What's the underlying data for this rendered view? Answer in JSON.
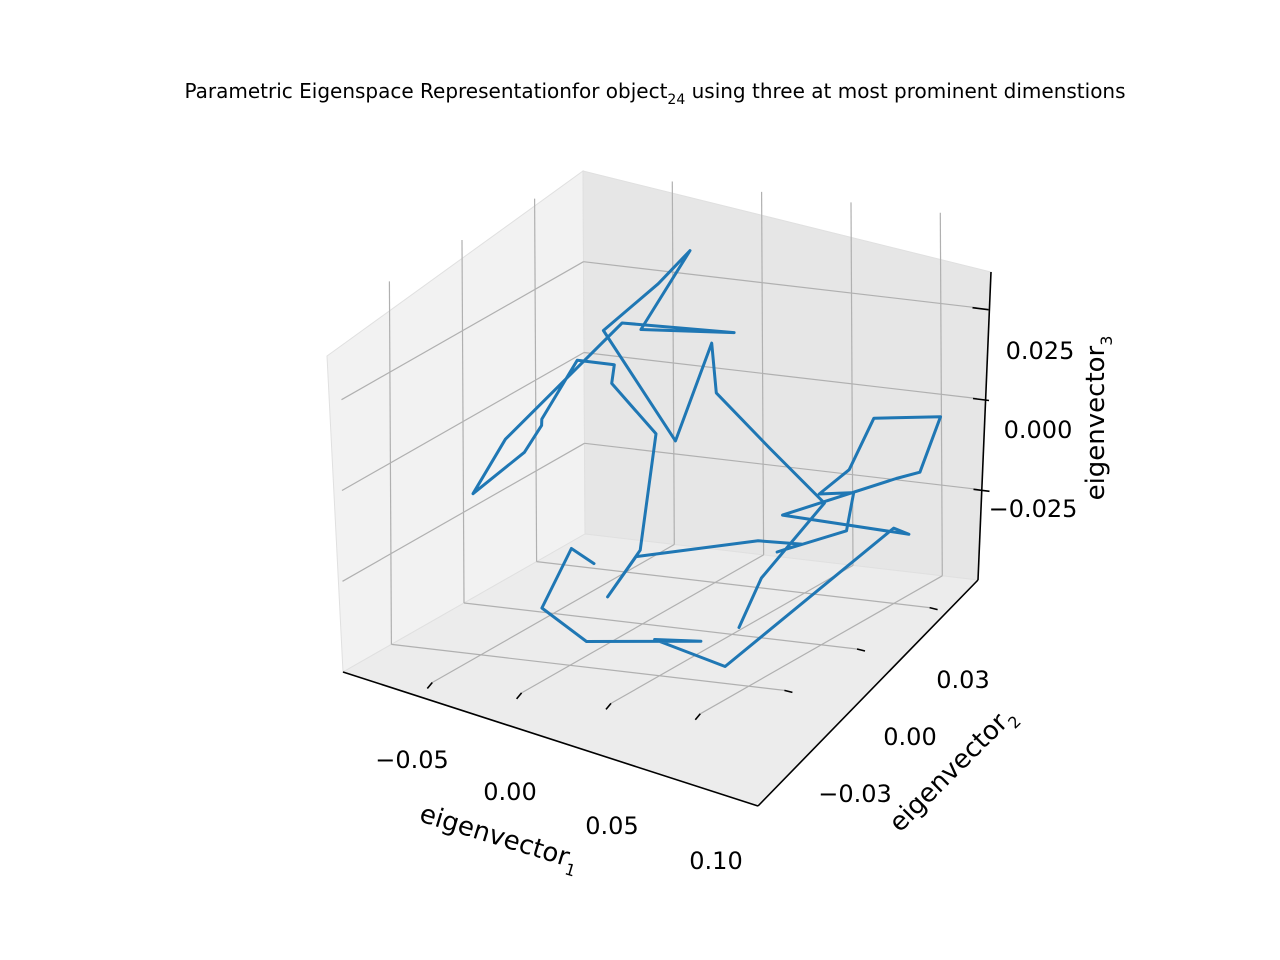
{
  "chart_data": {
    "type": "line3d",
    "title_main": "Parametric Eigenspace Representationfor object",
    "title_sub": "24",
    "title_tail": " using three at most prominent dimenstions",
    "xlabel_main": "eigenvector",
    "xlabel_sub": "1",
    "ylabel_main": "eigenvector",
    "ylabel_sub": "2",
    "zlabel_main": "eigenvector",
    "zlabel_sub": "3",
    "xlim": [
      -0.1,
      0.12
    ],
    "ylim": [
      -0.05,
      0.05
    ],
    "zlim": [
      -0.05,
      0.05
    ],
    "x_ticks": [
      -0.05,
      0.0,
      0.05,
      0.1
    ],
    "x_tick_labels": [
      "−0.05",
      "0.00",
      "0.05",
      "0.10"
    ],
    "y_ticks": [
      -0.03,
      0.0,
      0.03
    ],
    "y_tick_labels": [
      "−0.03",
      "0.00",
      "0.03"
    ],
    "z_ticks": [
      -0.025,
      0.0,
      0.025
    ],
    "z_tick_labels": [
      "−0.025",
      "0.000",
      "0.025"
    ],
    "grid": true,
    "series": [
      {
        "color": "#1f77b4",
        "x": [
          -0.042,
          -0.056,
          -0.036,
          0.012,
          0.053,
          0.042,
          0.076,
          0.092,
          0.11,
          0.095,
          0.118,
          0.115,
          0.109,
          0.103,
          0.089,
          0.083,
          0.086,
          0.09,
          0.081,
          0.077,
          0.069,
          0.04,
          0.024,
          0.007,
          -0.03,
          -0.056,
          -0.064,
          -0.082,
          -0.098,
          -0.09,
          -0.082,
          -0.081,
          -0.06,
          -0.05,
          -0.005,
          -0.03,
          -0.024,
          0.003,
          -0.017,
          -0.03,
          0.011,
          0.027,
          0.058,
          0.075,
          0.083,
          0.107
        ],
        "y": [
          0.011,
          0.012,
          -0.015,
          -0.032,
          -0.015,
          -0.026,
          -0.022,
          0.036,
          0.029,
          -0.012,
          0.018,
          0.03,
          0.043,
          0.02,
          0.02,
          0.012,
          0.024,
          0.018,
          -0.004,
          0.009,
          -0.003,
          -0.032,
          -0.032,
          -0.006,
          0.028,
          0.029,
          0.036,
          0.034,
          0.031,
          0.025,
          0.012,
          -0.01,
          -0.012,
          0.029,
          0.042,
          0.022,
          0.038,
          0.005,
          -0.003,
          0.036,
          0.021,
          0.011,
          0.01,
          0.02,
          -0.012,
          -0.039
        ],
        "z": [
          -0.04,
          -0.037,
          -0.042,
          -0.042,
          -0.046,
          -0.042,
          -0.049,
          -0.032,
          -0.03,
          -0.01,
          -0.01,
          -0.013,
          -0.003,
          0.005,
          -0.01,
          -0.014,
          -0.018,
          -0.026,
          -0.024,
          -0.027,
          -0.022,
          -0.017,
          -0.029,
          -0.027,
          -0.01,
          0.002,
          0.004,
          0.005,
          -0.011,
          -0.01,
          -0.012,
          -0.015,
          0.002,
          0.019,
          0.014,
          0.021,
          0.037,
          0.042,
          0.031,
          -0.015,
          0.02,
          0.011,
          -0.002,
          -0.02,
          -0.028,
          -0.03
        ]
      }
    ]
  }
}
